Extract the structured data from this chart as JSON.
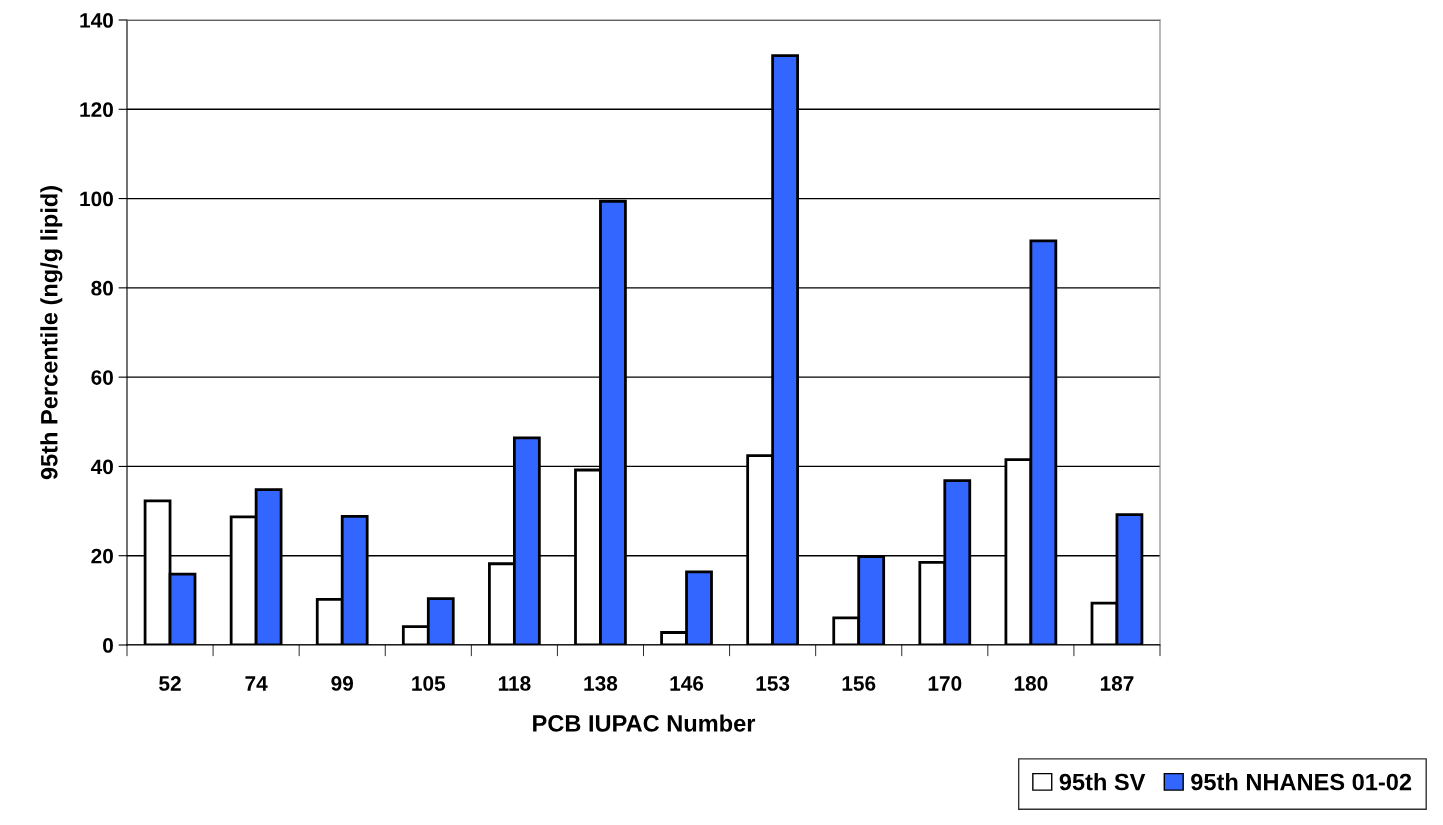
{
  "chart_data": {
    "type": "bar",
    "xlabel": "PCB IUPAC Number",
    "ylabel": "95th Percentile (ng/g lipid)",
    "categories": [
      "52",
      "74",
      "99",
      "105",
      "118",
      "138",
      "146",
      "153",
      "156",
      "170",
      "180",
      "187"
    ],
    "series": [
      {
        "name": "95th SV",
        "color": "#ffffff",
        "values": [
          32.3,
          28.7,
          10.2,
          4.1,
          18.2,
          39.2,
          2.8,
          42.4,
          6.1,
          18.5,
          41.5,
          9.4
        ]
      },
      {
        "name": "95th NHANES 01-02",
        "color": "#3366ff",
        "values": [
          15.9,
          34.8,
          28.8,
          10.4,
          46.4,
          99.4,
          16.4,
          132,
          19.8,
          36.8,
          90.5,
          29.2
        ]
      }
    ],
    "ylim": [
      0,
      140
    ],
    "yticks": [
      0,
      20,
      40,
      60,
      80,
      100,
      120,
      140
    ],
    "grid": "y",
    "legend": "bottom right"
  }
}
